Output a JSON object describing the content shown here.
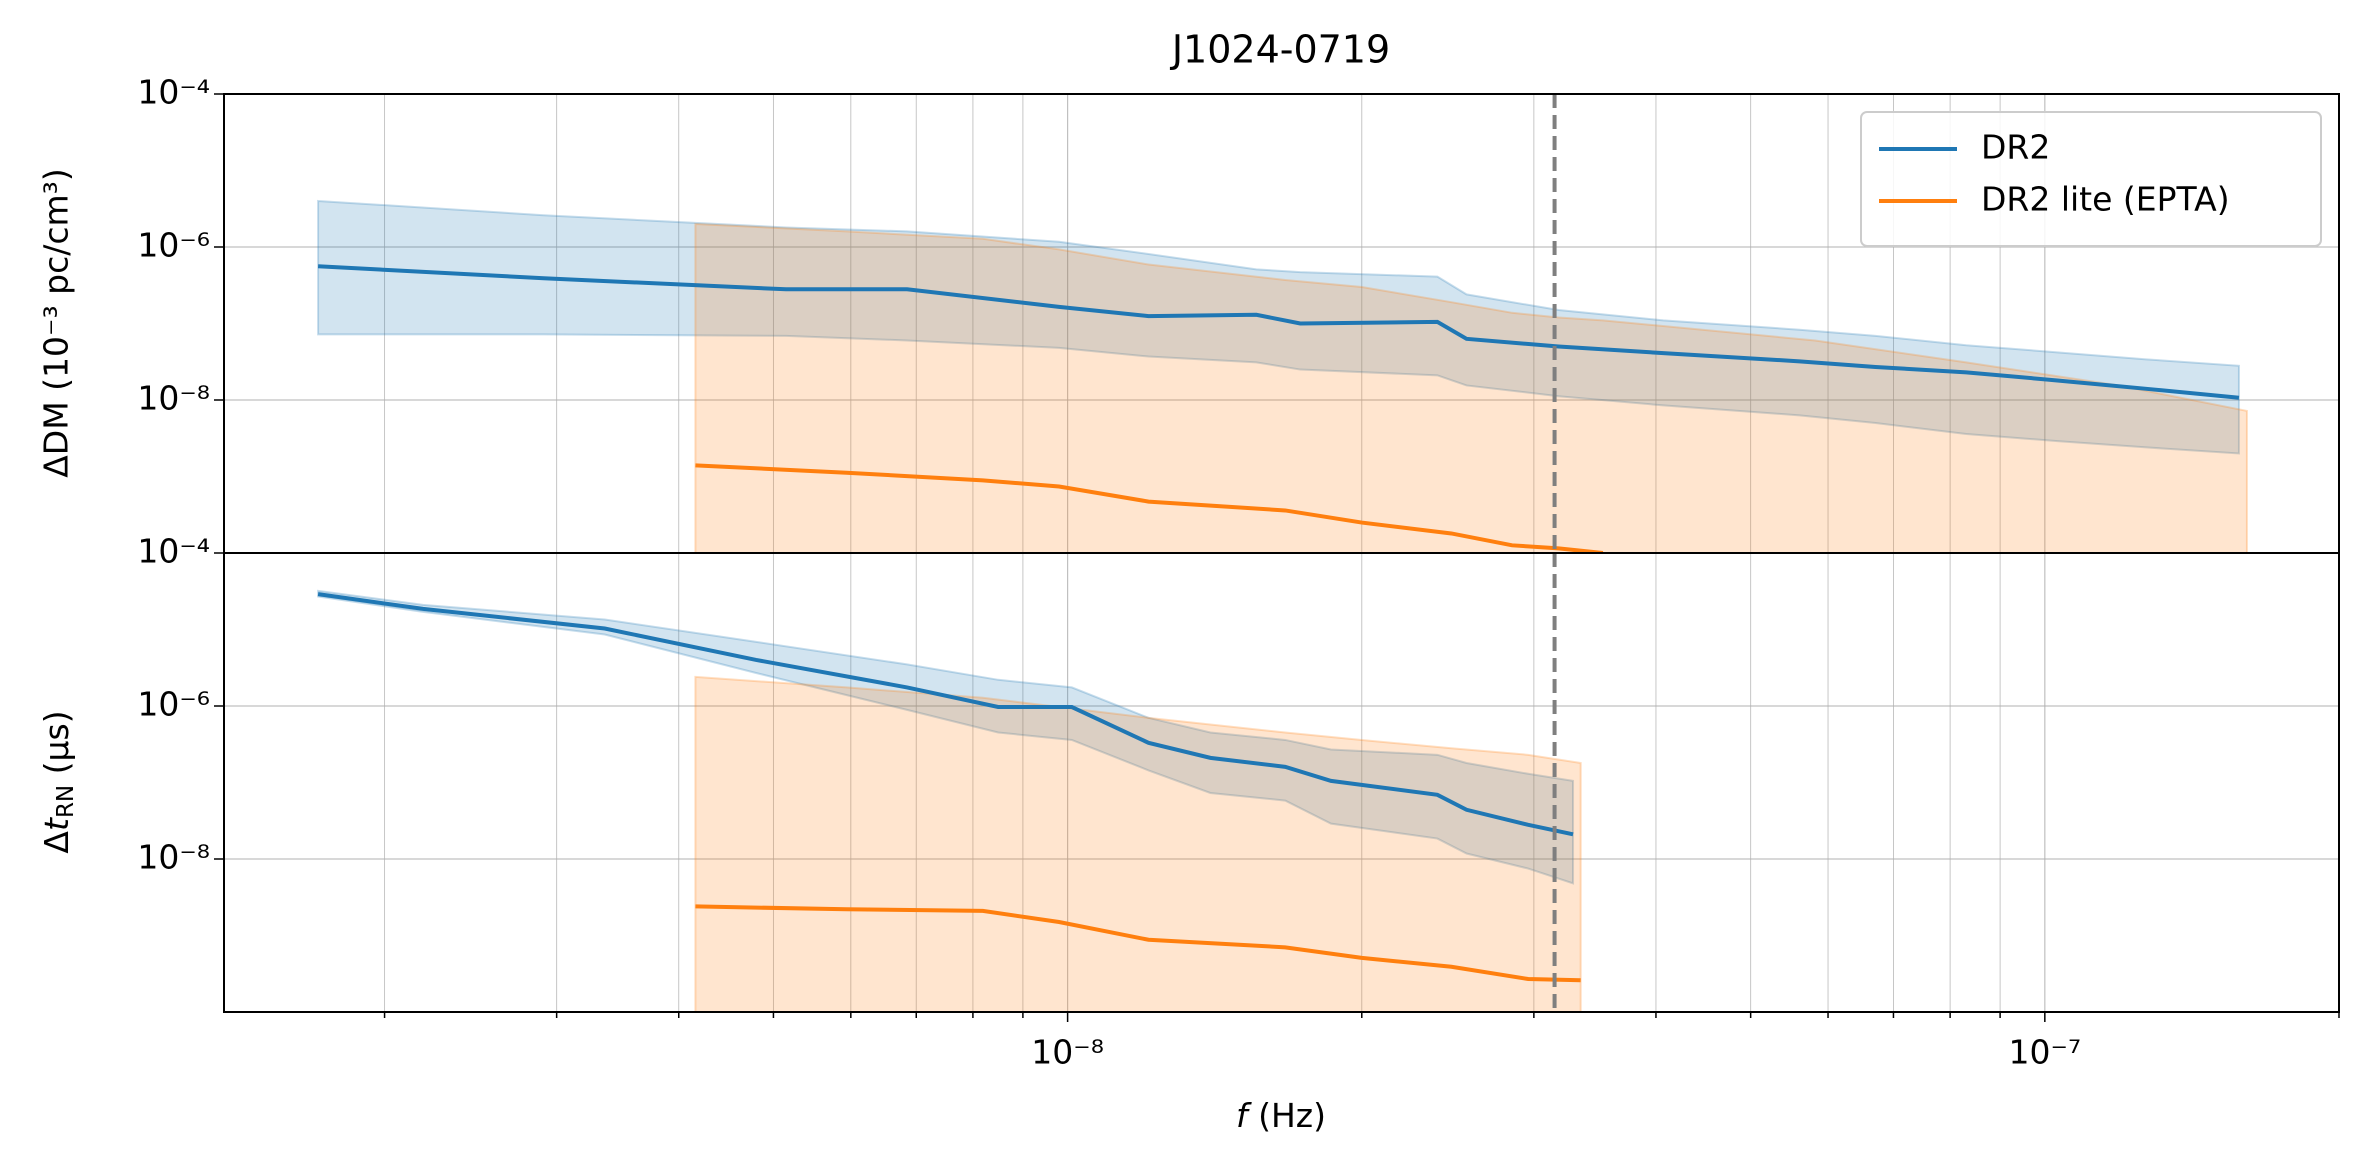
{
  "chart_data": {
    "type": "line",
    "title": "J1024-0719",
    "xlabel": [
      "f",
      " (Hz)"
    ],
    "xscale": "log",
    "xlim": [
      1.37e-09,
      2e-07
    ],
    "xticks": [
      {
        "value": 1e-08,
        "label": "10⁻⁸"
      },
      {
        "value": 1e-07,
        "label": "10⁻⁷"
      }
    ],
    "xminorticks": [
      2e-09,
      3e-09,
      4e-09,
      5e-09,
      6e-09,
      7e-09,
      8e-09,
      9e-09,
      2e-08,
      3e-08,
      4e-08,
      5e-08,
      6e-08,
      7e-08,
      8e-08,
      9e-08,
      2e-07
    ],
    "grid": true,
    "legend": "upper right",
    "vline": {
      "x": 3.15e-08,
      "color": "#7f7f7f"
    },
    "panels": [
      {
        "ylabel": "ΔDM (10⁻³ pc/cm³)",
        "yscale": "log",
        "ylim": [
          1e-10,
          0.0001
        ],
        "yticks": [
          {
            "value": 0.0001,
            "label": "10⁻⁴"
          },
          {
            "value": 1e-06,
            "label": "10⁻⁶"
          },
          {
            "value": 1e-08,
            "label": "10⁻⁸"
          }
        ],
        "series": [
          {
            "name": "DR2",
            "color": "#1f77b4",
            "x": [
              1.71e-09,
              2.91e-09,
              5.15e-09,
              6.85e-09,
              9.8e-09,
              1.21e-08,
              1.56e-08,
              1.73e-08,
              2.39e-08,
              2.56e-08,
              3.18e-08,
              4.07e-08,
              5.61e-08,
              6.71e-08,
              8.31e-08,
              1.03e-07,
              1.27e-07,
              1.58e-07
            ],
            "values": [
              5.6e-07,
              3.9e-07,
              2.8e-07,
              2.8e-07,
              1.65e-07,
              1.25e-07,
              1.3e-07,
              1e-07,
              1.05e-07,
              6.3e-08,
              5e-08,
              4.1e-08,
              3.2e-08,
              2.7e-08,
              2.3e-08,
              1.8e-08,
              1.4e-08,
              1.07e-08
            ],
            "upper": [
              4e-06,
              2.6e-06,
              1.8e-06,
              1.6e-06,
              1.17e-06,
              8.1e-07,
              5.1e-07,
              4.7e-07,
              4.1e-07,
              2.4e-07,
              1.5e-07,
              1.1e-07,
              8.3e-08,
              6.9e-08,
              5.2e-08,
              4.2e-08,
              3.4e-08,
              2.8e-08
            ],
            "lower": [
              7.2e-08,
              7.2e-08,
              6.9e-08,
              6e-08,
              4.8e-08,
              3.7e-08,
              3.1e-08,
              2.5e-08,
              2.1e-08,
              1.55e-08,
              1.12e-08,
              8.5e-09,
              6.3e-09,
              5e-09,
              3.6e-09,
              2.9e-09,
              2.4e-09,
              2e-09
            ]
          },
          {
            "name": "DR2 lite (EPTA)",
            "color": "#ff7f0e",
            "x": [
              4.16e-09,
              5.94e-09,
              8.19e-09,
              9.8e-09,
              1.21e-08,
              1.67e-08,
              2e-08,
              2.47e-08,
              2.85e-08,
              3.18e-08,
              3.53e-08,
              5.82e-08,
              8.31e-08,
              1.19e-07,
              1.61e-07
            ],
            "values": [
              1.4e-09,
              1.12e-09,
              8.9e-10,
              7.4e-10,
              4.7e-10,
              3.6e-10,
              2.5e-10,
              1.8e-10,
              1.26e-10,
              1.15e-10,
              1e-10,
              null,
              null,
              null,
              null
            ],
            "upper": [
              2e-06,
              1.6e-06,
              1.28e-06,
              9.3e-07,
              5.9e-07,
              3.7e-07,
              3e-07,
              1.9e-07,
              1.38e-07,
              1.2e-07,
              1.1e-07,
              6e-08,
              3.1e-08,
              1.55e-08,
              7.2e-09
            ],
            "lower": [
              1e-10,
              1e-10,
              1e-10,
              1e-10,
              1e-10,
              1e-10,
              1e-10,
              1e-10,
              1e-10,
              1e-10,
              1e-10,
              1e-10,
              1e-10,
              1e-10,
              1e-10
            ]
          }
        ]
      },
      {
        "ylabel": [
          "Δ",
          "t",
          "RN",
          " (μs)"
        ],
        "yscale": "log",
        "ylim": [
          1e-10,
          0.0001
        ],
        "yticks": [
          {
            "value": 0.0001,
            "label": "10⁻⁴"
          },
          {
            "value": 1e-06,
            "label": "10⁻⁶"
          },
          {
            "value": 1e-08,
            "label": "10⁻⁸"
          }
        ],
        "series": [
          {
            "color": "#1f77b4",
            "x": [
              1.71e-09,
              2.19e-09,
              3.36e-09,
              4.8e-09,
              6.85e-09,
              8.49e-09,
              1.01e-08,
              1.21e-08,
              1.4e-08,
              1.67e-08,
              1.86e-08,
              2.39e-08,
              2.56e-08,
              2.96e-08,
              3.29e-08
            ],
            "values": [
              2.9e-05,
              1.86e-05,
              1.03e-05,
              4e-06,
              1.75e-06,
              9.7e-07,
              9.7e-07,
              3.3e-07,
              2.1e-07,
              1.6e-07,
              1.05e-07,
              6.9e-08,
              4.4e-08,
              2.8e-08,
              2.1e-08
            ],
            "upper": [
              3.2e-05,
              2.1e-05,
              1.35e-05,
              6.9e-06,
              3.5e-06,
              2.2e-06,
              1.75e-06,
              7e-07,
              4.5e-07,
              3.6e-07,
              2.7e-07,
              2.3e-07,
              1.8e-07,
              1.3e-07,
              1.05e-07
            ],
            "lower": [
              2.7e-05,
              1.7e-05,
              8.6e-06,
              2.7e-06,
              8.9e-07,
              4.5e-07,
              3.6e-07,
              1.44e-07,
              7.3e-08,
              5.8e-08,
              2.9e-08,
              1.85e-08,
              1.18e-08,
              7.5e-09,
              4.8e-09
            ]
          },
          {
            "color": "#ff7f0e",
            "x": [
              4.16e-09,
              5.94e-09,
              8.19e-09,
              9.8e-09,
              1.21e-08,
              1.67e-08,
              2e-08,
              2.47e-08,
              2.96e-08,
              3.35e-08
            ],
            "values": [
              2.4e-09,
              2.2e-09,
              2.1e-09,
              1.5e-09,
              8.8e-10,
              7e-10,
              5.1e-10,
              3.9e-10,
              2.7e-10,
              2.6e-10
            ],
            "upper": [
              2.4e-06,
              1.75e-06,
              1.28e-06,
              9.7e-07,
              7e-07,
              4.5e-07,
              3.6e-07,
              2.8e-07,
              2.3e-07,
              1.8e-07
            ],
            "lower": [
              1e-10,
              1e-10,
              1e-10,
              1e-10,
              1e-10,
              1e-10,
              1e-10,
              1e-10,
              1e-10,
              1e-10
            ]
          }
        ]
      }
    ]
  }
}
